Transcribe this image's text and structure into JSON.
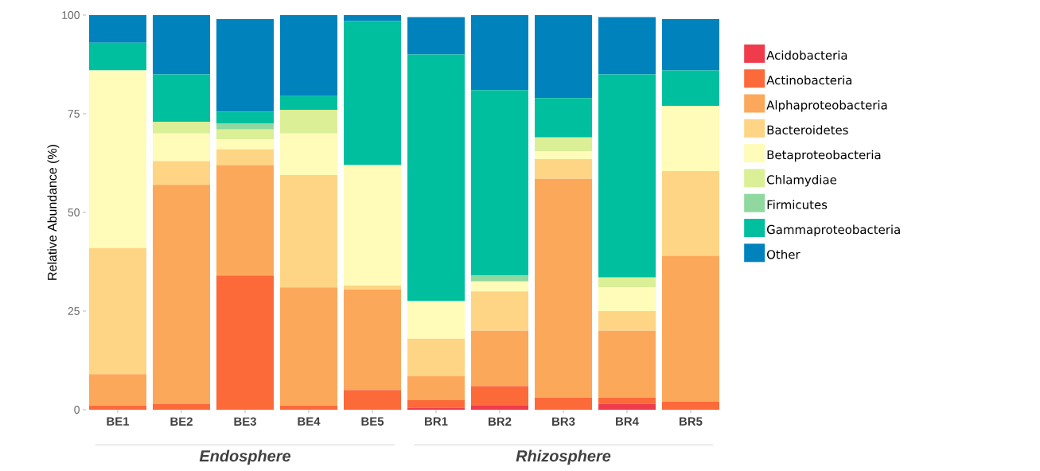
{
  "chart_data": {
    "type": "bar",
    "stacked": true,
    "ylabel": "Relative Abundance (%)",
    "categories": [
      "BE1",
      "BE2",
      "BE3",
      "BE4",
      "BE5",
      "BR1",
      "BR2",
      "BR3",
      "BR4",
      "BR5"
    ],
    "series": [
      {
        "name": "Acidobacteria",
        "color": "#f03b4c",
        "values": [
          0,
          0,
          0,
          0,
          0,
          0.5,
          1,
          0,
          1.5,
          0
        ]
      },
      {
        "name": "Actinobacteria",
        "color": "#fc6a3a",
        "values": [
          1,
          1.5,
          34,
          1,
          5,
          2,
          5,
          3,
          1.5,
          2
        ]
      },
      {
        "name": "Alphaproteobacteria",
        "color": "#fca85b",
        "values": [
          8,
          55.5,
          28,
          30,
          25.5,
          6,
          14,
          55.5,
          17,
          37
        ]
      },
      {
        "name": "Bacteroidetes",
        "color": "#fdd584",
        "values": [
          32,
          6,
          4,
          28.5,
          1,
          9.5,
          10,
          5,
          5,
          21.5
        ]
      },
      {
        "name": "Betaproteobacteria",
        "color": "#fffbb9",
        "values": [
          45,
          7,
          2.5,
          10.5,
          30.5,
          9.5,
          2.5,
          2,
          6,
          16.5
        ]
      },
      {
        "name": "Chlamydiae",
        "color": "#dbef97",
        "values": [
          0,
          3,
          2.5,
          6,
          0,
          0,
          0,
          3.5,
          2.5,
          0
        ]
      },
      {
        "name": "Firmicutes",
        "color": "#8fd8a0",
        "values": [
          0,
          0,
          1.5,
          0,
          0,
          0,
          1.5,
          0,
          0,
          0
        ]
      },
      {
        "name": "Gammaproteobacteria",
        "color": "#00bf9f",
        "values": [
          7,
          12,
          3,
          3.5,
          36.5,
          62.5,
          47,
          10,
          51.5,
          9
        ]
      },
      {
        "name": "Other",
        "color": "#0082bd",
        "values": [
          7,
          15,
          23.5,
          20.5,
          1.5,
          9.5,
          19,
          21,
          14.5,
          13
        ]
      }
    ],
    "ylim": [
      0,
      100
    ],
    "yticks": [
      0,
      25,
      50,
      75,
      100
    ],
    "grid": false,
    "legend": "right",
    "annotations": [
      "Endosphere",
      "Rhizosphere"
    ]
  }
}
